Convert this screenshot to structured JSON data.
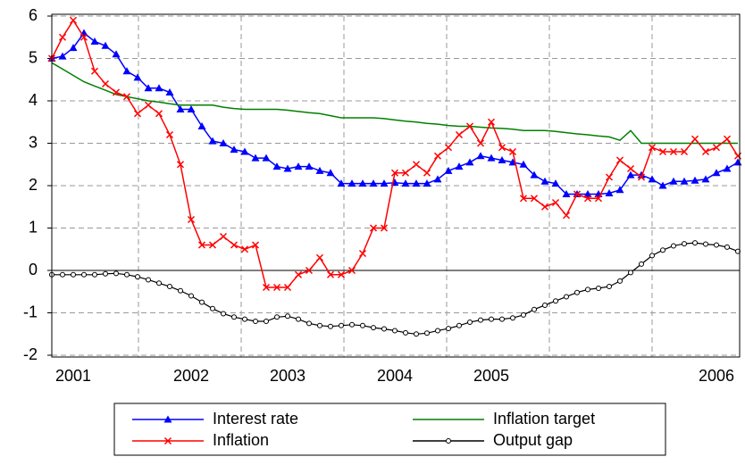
{
  "chart_data": {
    "type": "line",
    "categories": [
      null,
      null,
      "2001",
      null,
      null,
      null,
      null,
      null,
      null,
      null,
      null,
      null,
      null,
      "2002",
      null,
      null,
      null,
      null,
      null,
      null,
      null,
      null,
      "2003",
      null,
      null,
      null,
      null,
      null,
      null,
      null,
      null,
      null,
      "2004",
      null,
      null,
      null,
      null,
      null,
      null,
      null,
      null,
      "2005",
      null,
      null,
      null,
      null,
      null,
      null,
      null,
      null,
      null,
      null,
      null,
      null,
      null,
      null,
      null,
      null,
      null,
      null,
      null,
      null,
      "2006",
      null,
      null
    ],
    "ylim": [
      -2,
      6
    ],
    "yticks": [
      -2,
      -1,
      0,
      1,
      2,
      3,
      4,
      5,
      6
    ],
    "grid": true,
    "legend": "bottom",
    "series": [
      {
        "name": "Interest rate",
        "color": "#0000ff",
        "marker": "triangle",
        "values": [
          5.0,
          5.05,
          5.25,
          5.6,
          5.4,
          5.3,
          5.1,
          4.7,
          4.55,
          4.3,
          4.3,
          4.2,
          3.8,
          3.8,
          3.4,
          3.05,
          3.0,
          2.85,
          2.8,
          2.65,
          2.65,
          2.45,
          2.4,
          2.45,
          2.45,
          2.35,
          2.3,
          2.05,
          2.05,
          2.05,
          2.05,
          2.05,
          2.07,
          2.05,
          2.05,
          2.05,
          2.15,
          2.35,
          2.45,
          2.55,
          2.7,
          2.65,
          2.6,
          2.55,
          2.5,
          2.25,
          2.1,
          2.05,
          1.8,
          1.8,
          1.8,
          1.8,
          1.82,
          1.9,
          2.25,
          2.25,
          2.15,
          2.0,
          2.1,
          2.1,
          2.12,
          2.15,
          2.3,
          2.4,
          2.55
        ]
      },
      {
        "name": "Inflation target",
        "color": "#008000",
        "marker": null,
        "values": [
          4.9,
          4.75,
          4.6,
          4.45,
          4.35,
          4.25,
          4.15,
          4.1,
          4.05,
          4.0,
          3.97,
          3.93,
          3.9,
          3.9,
          3.9,
          3.9,
          3.85,
          3.82,
          3.8,
          3.8,
          3.8,
          3.8,
          3.78,
          3.75,
          3.72,
          3.7,
          3.65,
          3.6,
          3.6,
          3.6,
          3.6,
          3.58,
          3.55,
          3.52,
          3.5,
          3.47,
          3.45,
          3.42,
          3.4,
          3.4,
          3.38,
          3.36,
          3.35,
          3.33,
          3.3,
          3.3,
          3.3,
          3.28,
          3.25,
          3.22,
          3.2,
          3.17,
          3.15,
          3.07,
          3.3,
          3.0,
          3.0,
          3.0,
          3.0,
          3.0,
          3.0,
          3.0,
          3.0,
          3.0,
          3.0
        ]
      },
      {
        "name": "Inflation",
        "color": "#ff0000",
        "marker": "x",
        "values": [
          5.0,
          5.5,
          5.9,
          5.5,
          4.7,
          4.4,
          4.2,
          4.1,
          3.7,
          3.9,
          3.7,
          3.2,
          2.5,
          1.2,
          0.6,
          0.6,
          0.8,
          0.6,
          0.5,
          0.6,
          -0.4,
          -0.4,
          -0.4,
          -0.1,
          0.0,
          0.3,
          -0.1,
          -0.1,
          0.0,
          0.4,
          1.0,
          1.0,
          2.3,
          2.3,
          2.5,
          2.3,
          2.7,
          2.9,
          3.2,
          3.4,
          3.0,
          3.5,
          2.9,
          2.8,
          1.7,
          1.7,
          1.5,
          1.6,
          1.3,
          1.8,
          1.7,
          1.7,
          2.2,
          2.6,
          2.4,
          2.2,
          2.9,
          2.8,
          2.8,
          2.8,
          3.1,
          2.8,
          2.9,
          3.1,
          2.7
        ]
      },
      {
        "name": "Output gap",
        "color": "#000000",
        "marker": "circle",
        "values": [
          -0.1,
          -0.1,
          -0.1,
          -0.1,
          -0.1,
          -0.08,
          -0.07,
          -0.1,
          -0.15,
          -0.22,
          -0.3,
          -0.38,
          -0.48,
          -0.6,
          -0.75,
          -0.9,
          -1.02,
          -1.1,
          -1.15,
          -1.2,
          -1.2,
          -1.1,
          -1.08,
          -1.15,
          -1.25,
          -1.3,
          -1.32,
          -1.3,
          -1.28,
          -1.3,
          -1.35,
          -1.38,
          -1.42,
          -1.47,
          -1.5,
          -1.48,
          -1.42,
          -1.37,
          -1.3,
          -1.22,
          -1.17,
          -1.15,
          -1.15,
          -1.12,
          -1.05,
          -0.92,
          -0.82,
          -0.72,
          -0.62,
          -0.52,
          -0.45,
          -0.42,
          -0.38,
          -0.25,
          -0.05,
          0.15,
          0.35,
          0.48,
          0.58,
          0.63,
          0.65,
          0.62,
          0.6,
          0.55,
          0.45
        ]
      }
    ]
  }
}
